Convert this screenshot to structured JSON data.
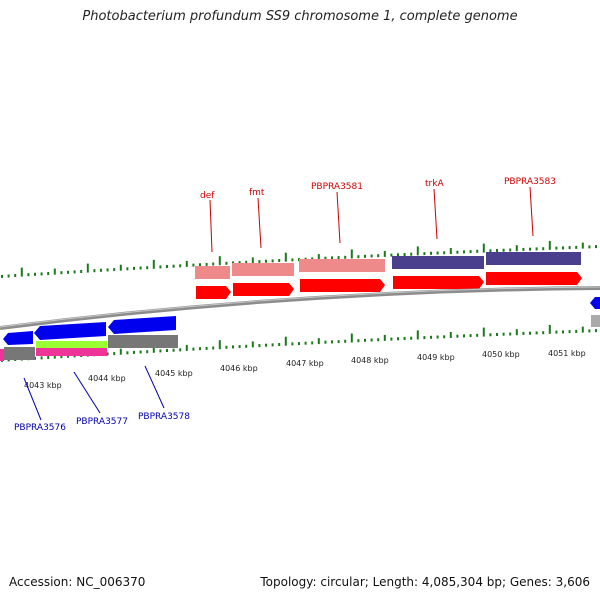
{
  "title": "Photobacterium profundum SS9 chromosome 1, complete genome",
  "footer": {
    "accession": "Accession: NC_006370",
    "summary": "Topology: circular; Length: 4,085,304 bp; Genes: 3,606"
  },
  "colors": {
    "backbone": "#8c8c8c",
    "tick": "#1a7a1a",
    "red_gene": "#ff0000",
    "pink_gene": "#ee8a8a",
    "indigo_gene": "#4a3f8c",
    "blue_gene": "#0000ee",
    "gray_gene": "#777777",
    "lime_gene": "#99ff33",
    "magenta_gene": "#ee3399",
    "label_red": "#cc0000",
    "label_blue": "#0000aa"
  },
  "scale_labels": [
    "4043 kbp",
    "4044 kbp",
    "4045 kbp",
    "4046 kbp",
    "4047 kbp",
    "4048 kbp",
    "4049 kbp",
    "4050 kbp",
    "4051 kbp"
  ],
  "gene_labels_top": [
    "def",
    "fmt",
    "PBPRA3581",
    "trkA",
    "PBPRA3583"
  ],
  "gene_labels_bottom": [
    "PBPRA3576",
    "PBPRA3577",
    "PBPRA3578"
  ]
}
